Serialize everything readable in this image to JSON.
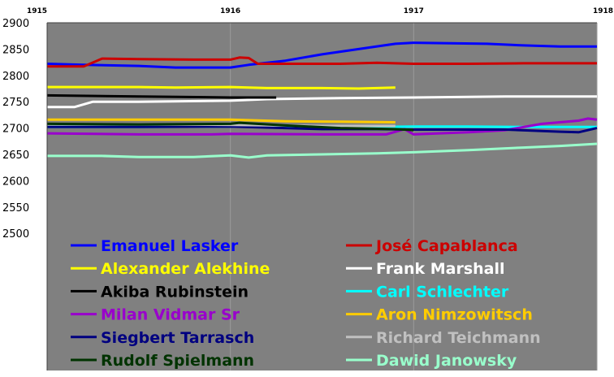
{
  "chart_data": {
    "type": "line",
    "title": "",
    "xlabel": "",
    "ylabel": "",
    "xlim": [
      1915,
      1918
    ],
    "ylim": [
      2500,
      2900
    ],
    "x_ticks": [
      "1915",
      "1916",
      "1917",
      "1918"
    ],
    "y_ticks": [
      "2500",
      "2550",
      "2600",
      "2650",
      "2700",
      "2750",
      "2800",
      "2850",
      "2900"
    ],
    "grid": "vertical lines at each year",
    "legend_position": "bottom, inside plot area, two columns",
    "background_color": "#808080",
    "series": [
      {
        "name": "Emanuel Lasker",
        "color": "#0000ff",
        "points": [
          [
            1915.0,
            2822
          ],
          [
            1915.2,
            2820
          ],
          [
            1915.5,
            2818
          ],
          [
            1915.7,
            2815
          ],
          [
            1915.9,
            2815
          ],
          [
            1916.0,
            2815
          ],
          [
            1916.1,
            2820
          ],
          [
            1916.3,
            2828
          ],
          [
            1916.5,
            2840
          ],
          [
            1916.7,
            2850
          ],
          [
            1916.9,
            2860
          ],
          [
            1917.0,
            2862
          ],
          [
            1917.2,
            2861
          ],
          [
            1917.4,
            2860
          ],
          [
            1917.6,
            2857
          ],
          [
            1917.8,
            2855
          ],
          [
            1918.0,
            2855
          ]
        ]
      },
      {
        "name": "José Capablanca",
        "color": "#cc0000",
        "points": [
          [
            1915.0,
            2817
          ],
          [
            1915.1,
            2817
          ],
          [
            1915.2,
            2817
          ],
          [
            1915.3,
            2832
          ],
          [
            1915.5,
            2831
          ],
          [
            1915.8,
            2830
          ],
          [
            1916.0,
            2830
          ],
          [
            1916.05,
            2834
          ],
          [
            1916.1,
            2833
          ],
          [
            1916.15,
            2822
          ],
          [
            1916.3,
            2822
          ],
          [
            1916.6,
            2822
          ],
          [
            1916.8,
            2824
          ],
          [
            1917.0,
            2822
          ],
          [
            1917.3,
            2822
          ],
          [
            1917.6,
            2823
          ],
          [
            1918.0,
            2823
          ]
        ]
      },
      {
        "name": "Alexander Alekhine",
        "color": "#ffff00",
        "points": [
          [
            1915.0,
            2778
          ],
          [
            1915.5,
            2778
          ],
          [
            1915.7,
            2777
          ],
          [
            1916.0,
            2778
          ],
          [
            1916.2,
            2776
          ],
          [
            1916.5,
            2776
          ],
          [
            1916.7,
            2775
          ],
          [
            1916.9,
            2777
          ]
        ]
      },
      {
        "name": "Frank Marshall",
        "color": "#ffffff",
        "points": [
          [
            1915.0,
            2740
          ],
          [
            1915.15,
            2740
          ],
          [
            1915.25,
            2750
          ],
          [
            1915.5,
            2750
          ],
          [
            1916.0,
            2752
          ],
          [
            1916.2,
            2755
          ],
          [
            1916.6,
            2757
          ],
          [
            1917.0,
            2758
          ],
          [
            1917.5,
            2760
          ],
          [
            1918.0,
            2760
          ]
        ]
      },
      {
        "name": "Akiba Rubinstein",
        "color": "#000000",
        "points": [
          [
            1915.0,
            2762
          ],
          [
            1915.5,
            2760
          ],
          [
            1916.0,
            2758
          ],
          [
            1916.25,
            2758
          ]
        ]
      },
      {
        "name": "Carl Schlechter",
        "color": "#00ffff",
        "points": [
          [
            1915.0,
            2702
          ],
          [
            1915.5,
            2702
          ],
          [
            1916.0,
            2703
          ],
          [
            1916.4,
            2702
          ],
          [
            1916.8,
            2702
          ],
          [
            1917.0,
            2703
          ],
          [
            1917.3,
            2703
          ],
          [
            1917.6,
            2702
          ],
          [
            1918.0,
            2702
          ]
        ]
      },
      {
        "name": "Milan Vidmar Sr",
        "color": "#9900cc",
        "points": [
          [
            1915.0,
            2690
          ],
          [
            1915.5,
            2688
          ],
          [
            1915.9,
            2688
          ],
          [
            1916.0,
            2689
          ],
          [
            1916.5,
            2688
          ],
          [
            1916.85,
            2688
          ],
          [
            1916.95,
            2698
          ],
          [
            1917.0,
            2688
          ],
          [
            1917.3,
            2692
          ],
          [
            1917.5,
            2696
          ],
          [
            1917.7,
            2708
          ],
          [
            1917.9,
            2714
          ],
          [
            1917.95,
            2718
          ],
          [
            1918.0,
            2716
          ]
        ]
      },
      {
        "name": "Aron Nimzowitsch",
        "color": "#ffcc00",
        "points": [
          [
            1915.0,
            2716
          ],
          [
            1915.5,
            2716
          ],
          [
            1916.0,
            2716
          ],
          [
            1916.3,
            2713
          ],
          [
            1916.6,
            2712
          ],
          [
            1916.9,
            2711
          ]
        ]
      },
      {
        "name": "Siegbert Tarrasch",
        "color": "#000080",
        "points": [
          [
            1915.0,
            2702
          ],
          [
            1915.5,
            2702
          ],
          [
            1916.0,
            2703
          ],
          [
            1916.3,
            2700
          ],
          [
            1916.5,
            2698
          ],
          [
            1916.8,
            2698
          ],
          [
            1917.0,
            2697
          ],
          [
            1917.3,
            2697
          ],
          [
            1917.5,
            2697
          ],
          [
            1917.8,
            2693
          ],
          [
            1917.9,
            2692
          ],
          [
            1918.0,
            2700
          ]
        ]
      },
      {
        "name": "Richard Teichmann",
        "color": "#c0c0c0",
        "points": [
          [
            1915.0,
            2707
          ],
          [
            1915.5,
            2707
          ],
          [
            1916.0,
            2706
          ],
          [
            1916.5,
            2704
          ],
          [
            1916.9,
            2704
          ]
        ]
      },
      {
        "name": "Rudolf Spielmann",
        "color": "#003300",
        "points": [
          [
            1915.0,
            2708
          ],
          [
            1915.5,
            2707
          ],
          [
            1916.0,
            2708
          ],
          [
            1916.05,
            2710
          ],
          [
            1916.3,
            2705
          ],
          [
            1916.6,
            2700
          ],
          [
            1916.9,
            2698
          ],
          [
            1917.0,
            2696
          ]
        ]
      },
      {
        "name": "Dawid Janowsky",
        "color": "#99ffcc",
        "points": [
          [
            1915.0,
            2647
          ],
          [
            1915.3,
            2647
          ],
          [
            1915.5,
            2645
          ],
          [
            1915.8,
            2645
          ],
          [
            1916.0,
            2648
          ],
          [
            1916.1,
            2644
          ],
          [
            1916.2,
            2648
          ],
          [
            1916.5,
            2650
          ],
          [
            1916.8,
            2652
          ],
          [
            1917.0,
            2654
          ],
          [
            1917.3,
            2658
          ],
          [
            1917.6,
            2663
          ],
          [
            1917.8,
            2666
          ],
          [
            1918.0,
            2670
          ]
        ]
      }
    ]
  }
}
